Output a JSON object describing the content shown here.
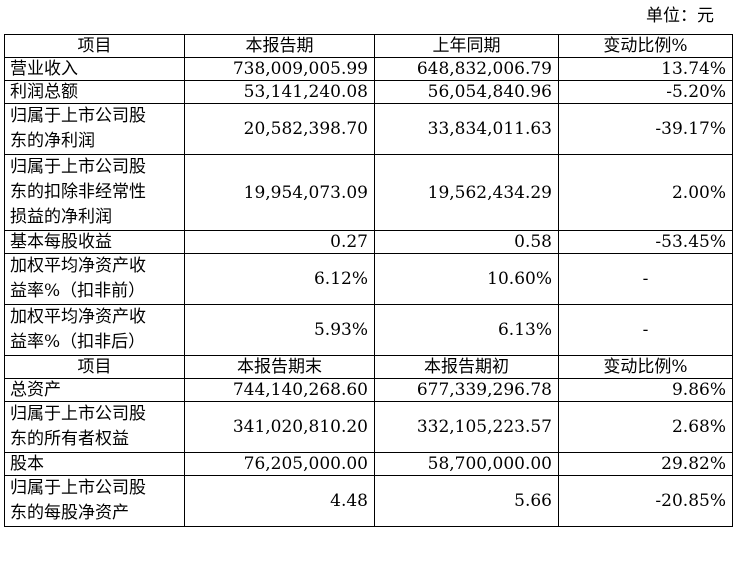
{
  "unit_label": "单位：元",
  "section1": {
    "headers": [
      "项目",
      "本报告期",
      "上年同期",
      "变动比例%"
    ],
    "rows": [
      {
        "item_lines": [
          "营业收入"
        ],
        "current": "738,009,005.99",
        "prior": "648,832,006.79",
        "change": "13.74%"
      },
      {
        "item_lines": [
          "利润总额"
        ],
        "current": "53,141,240.08",
        "prior": "56,054,840.96",
        "change": "-5.20%"
      },
      {
        "item_lines": [
          "归属于上市公司股",
          "东的净利润"
        ],
        "current": "20,582,398.70",
        "prior": "33,834,011.63",
        "change": "-39.17%"
      },
      {
        "item_lines": [
          "归属于上市公司股",
          "东的扣除非经常性",
          "损益的净利润"
        ],
        "current": "19,954,073.09",
        "prior": "19,562,434.29",
        "change": "2.00%"
      },
      {
        "item_lines": [
          "基本每股收益"
        ],
        "current": "0.27",
        "prior": "0.58",
        "change": "-53.45%"
      },
      {
        "item_lines": [
          "加权平均净资产收",
          "益率%（扣非前）"
        ],
        "current": "6.12%",
        "prior": "10.60%",
        "change": "-"
      },
      {
        "item_lines": [
          "加权平均净资产收",
          "益率%（扣非后）"
        ],
        "current": "5.93%",
        "prior": "6.13%",
        "change": "-"
      }
    ]
  },
  "section2": {
    "headers": [
      "项目",
      "本报告期末",
      "本报告期初",
      "变动比例%"
    ],
    "rows": [
      {
        "item_lines": [
          "总资产"
        ],
        "current": "744,140,268.60",
        "prior": "677,339,296.78",
        "change": "9.86%"
      },
      {
        "item_lines": [
          "归属于上市公司股",
          "东的所有者权益"
        ],
        "current": "341,020,810.20",
        "prior": "332,105,223.57",
        "change": "2.68%"
      },
      {
        "item_lines": [
          "股本"
        ],
        "current": "76,205,000.00",
        "prior": "58,700,000.00",
        "change": "29.82%"
      },
      {
        "item_lines": [
          "归属于上市公司股",
          "东的每股净资产"
        ],
        "current": "4.48",
        "prior": "5.66",
        "change": "-20.85%"
      }
    ]
  }
}
